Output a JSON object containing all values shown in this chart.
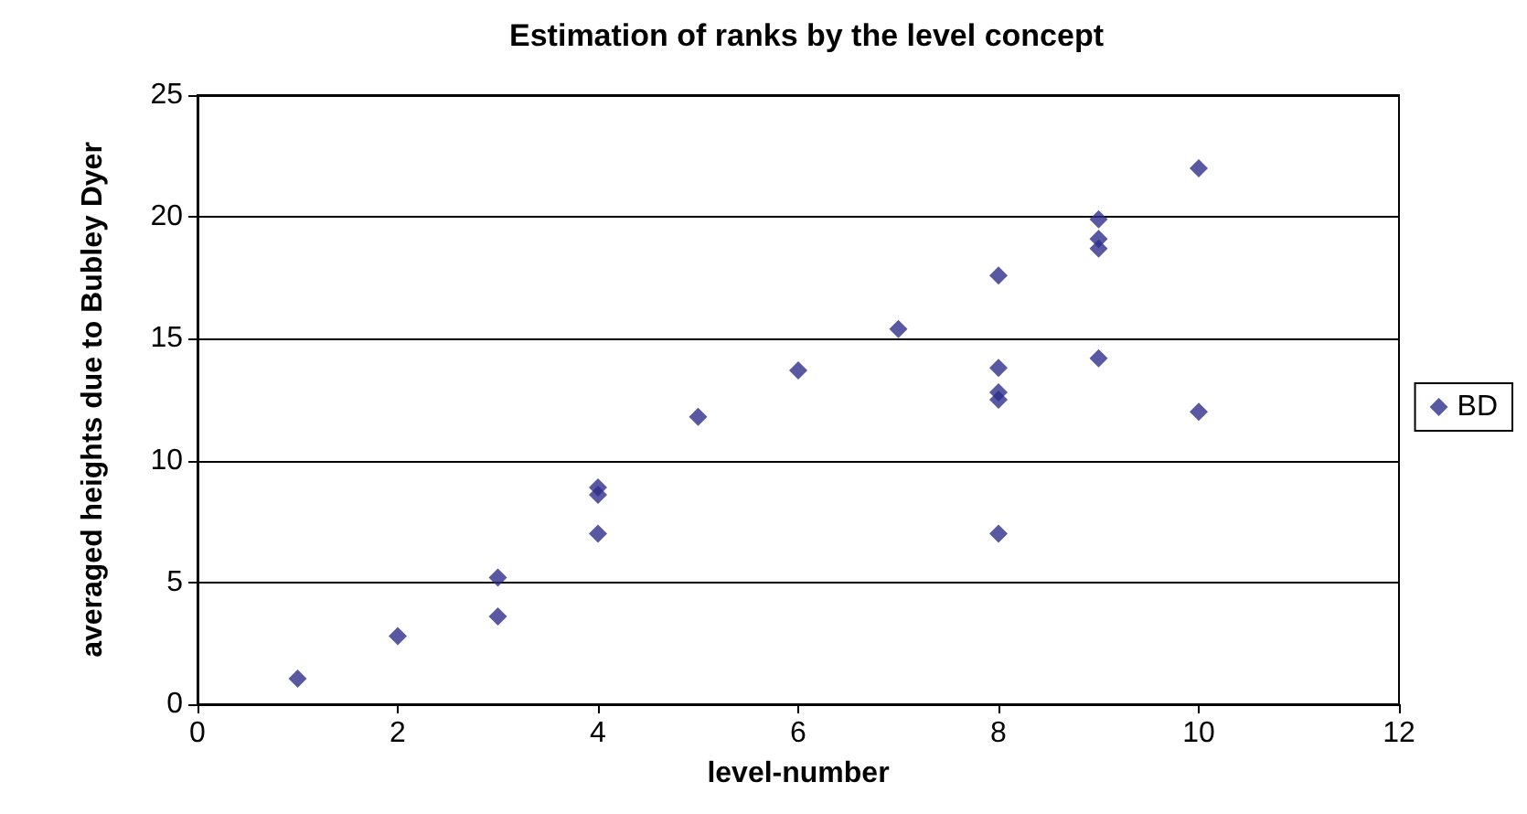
{
  "chart_data": {
    "type": "scatter",
    "title": "Estimation of ranks by the level concept",
    "xlabel": "level-number",
    "ylabel": "averaged heights due to Bubley Dyer",
    "xlim": [
      0,
      12
    ],
    "xticks": [
      0,
      2,
      4,
      6,
      8,
      10,
      12
    ],
    "ylim": [
      0,
      25
    ],
    "yticks": [
      0,
      5,
      10,
      15,
      20,
      25
    ],
    "grid": "y",
    "legend": "right",
    "marker": "diamond",
    "series": [
      {
        "name": "BD",
        "color": "#2e2e8c",
        "x": [
          1,
          2,
          3,
          3,
          4,
          4,
          4,
          5,
          6,
          7,
          8,
          8,
          8,
          8,
          8,
          9,
          9,
          9,
          9,
          10,
          10
        ],
        "values": [
          1.05,
          2.8,
          5.2,
          3.6,
          8.9,
          8.6,
          7.0,
          11.8,
          13.7,
          15.4,
          17.6,
          13.8,
          12.8,
          12.5,
          7.0,
          19.9,
          19.1,
          18.7,
          14.2,
          22.0,
          12.0
        ]
      }
    ]
  }
}
